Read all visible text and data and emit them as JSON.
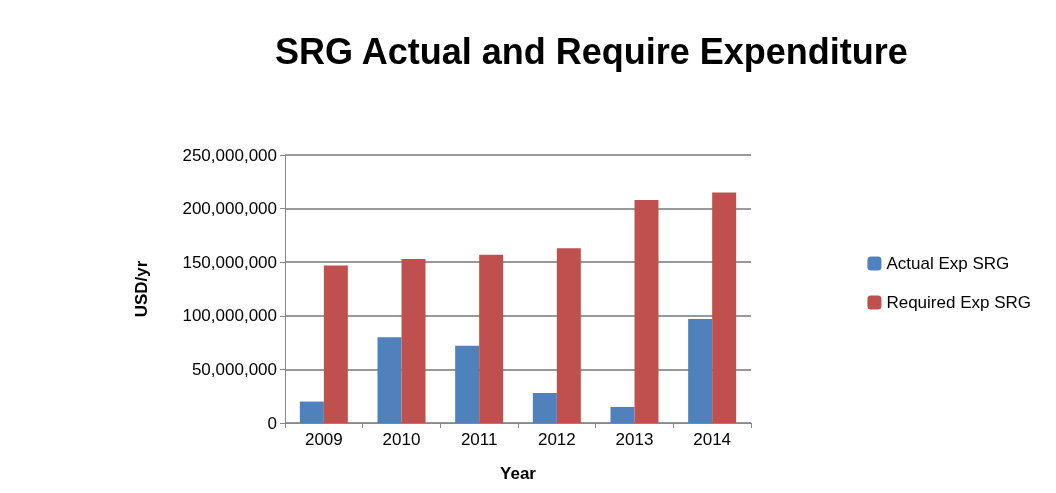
{
  "chart_data": {
    "type": "bar",
    "title": "SRG Actual and Require Expenditure",
    "xlabel": "Year",
    "ylabel": "USD/yr",
    "categories": [
      "2009",
      "2010",
      "2011",
      "2012",
      "2013",
      "2014"
    ],
    "series": [
      {
        "name": "Actual Exp SRG",
        "color": "#4f81bd",
        "values": [
          20000000,
          80000000,
          72000000,
          28000000,
          15000000,
          97000000
        ]
      },
      {
        "name": "Required Exp SRG",
        "color": "#c0504d",
        "values": [
          147000000,
          153000000,
          157000000,
          163000000,
          208000000,
          215000000
        ]
      }
    ],
    "ylim": [
      0,
      250000000
    ],
    "yticks": [
      {
        "value": 0,
        "label": "0"
      },
      {
        "value": 50000000,
        "label": "50,000,000"
      },
      {
        "value": 100000000,
        "label": "100,000,000"
      },
      {
        "value": 150000000,
        "label": "150,000,000"
      },
      {
        "value": 200000000,
        "label": "200,000,000"
      },
      {
        "value": 250000000,
        "label": "250,000,000"
      }
    ],
    "grid": "y",
    "legend": "right"
  }
}
